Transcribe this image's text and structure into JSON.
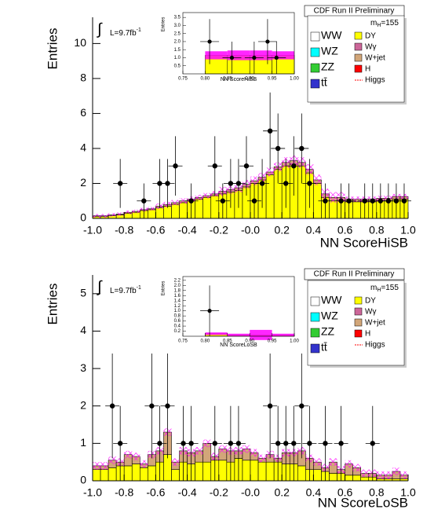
{
  "chart_data": [
    {
      "type": "histogram",
      "title": "CDF Run II Preliminary",
      "ylabel": "Entries",
      "xlabel": "NN ScoreHiSB",
      "annotations": {
        "integral": "∫",
        "lumi": "L=9.7fb",
        "lumi_sup": "-1",
        "mass": "m",
        "mass_sub": "H",
        "mass_rest": "=155"
      },
      "bins": [
        -1,
        -0.95,
        -0.9,
        -0.85,
        -0.8,
        -0.75,
        -0.7,
        -0.65,
        -0.6,
        -0.55,
        -0.5,
        -0.45,
        -0.4,
        -0.35,
        -0.3,
        -0.25,
        -0.2,
        -0.15,
        -0.1,
        -0.05,
        0,
        0.05,
        0.1,
        0.15,
        0.2,
        0.25,
        0.3,
        0.35,
        0.4,
        0.45,
        0.5,
        0.55,
        0.6,
        0.65,
        0.7,
        0.75,
        0.8,
        0.85,
        0.9,
        0.95,
        1
      ],
      "series": [
        {
          "name": "DY",
          "color": "#ffff00",
          "values": [
            0.1,
            0.1,
            0.15,
            0.2,
            0.3,
            0.35,
            0.45,
            0.5,
            0.6,
            0.7,
            0.8,
            0.9,
            1.0,
            1.1,
            1.2,
            1.3,
            1.4,
            1.5,
            1.6,
            1.8,
            2.0,
            2.2,
            2.5,
            2.8,
            3.0,
            3.1,
            3.0,
            2.6,
            2.0,
            1.2,
            1.0,
            1.0,
            0.95,
            0.95,
            0.95,
            0.95,
            1.0,
            1.0,
            1.1,
            1.1
          ]
        },
        {
          "name": "W+jet",
          "color": "#d2a679",
          "values": [
            0.05,
            0.05,
            0.05,
            0.05,
            0.05,
            0.05,
            0.05,
            0.05,
            0.1,
            0.1,
            0.1,
            0.1,
            0.1,
            0.1,
            0.1,
            0.1,
            0.15,
            0.15,
            0.15,
            0.15,
            0.15,
            0.15,
            0.15,
            0.15,
            0.2,
            0.2,
            0.2,
            0.2,
            0.2,
            0.2,
            0.2,
            0.2,
            0.15,
            0.15,
            0.15,
            0.15,
            0.15,
            0.15,
            0.15,
            0.15
          ]
        }
      ],
      "band": [
        0.1,
        0.1,
        0.1,
        0.1,
        0.1,
        0.1,
        0.1,
        0.1,
        0.15,
        0.15,
        0.15,
        0.15,
        0.15,
        0.15,
        0.15,
        0.15,
        0.25,
        0.25,
        0.25,
        0.25,
        0.25,
        0.25,
        0.25,
        0.25,
        0.3,
        0.3,
        0.3,
        0.3,
        0.3,
        0.3,
        0.3,
        0.3,
        0.15,
        0.15,
        0.15,
        0.15,
        0.15,
        0.15,
        0.15,
        0.15
      ],
      "band_color": "#ff00ff",
      "data": {
        "x": [
          -0.825,
          -0.675,
          -0.575,
          -0.525,
          -0.475,
          -0.375,
          -0.225,
          -0.175,
          -0.125,
          -0.075,
          -0.025,
          0.025,
          0.075,
          0.125,
          0.175,
          0.225,
          0.275,
          0.325,
          0.375,
          0.475,
          0.575,
          0.625,
          0.725,
          0.775,
          0.825,
          0.875,
          0.925,
          0.975
        ],
        "values": [
          2,
          1,
          2,
          2,
          3,
          1,
          3,
          1,
          2,
          2,
          3,
          1,
          2,
          5,
          4,
          2,
          3,
          4,
          2,
          1,
          1,
          1,
          1,
          1,
          1,
          1,
          1,
          1
        ],
        "errors": [
          1.4,
          1,
          1.4,
          1.4,
          1.7,
          1,
          1.7,
          1,
          1.4,
          1.4,
          1.7,
          1,
          1.4,
          2.2,
          2,
          1.4,
          1.7,
          2,
          1.4,
          1,
          1,
          1,
          1,
          1,
          1,
          1,
          1,
          1
        ]
      },
      "xlim": [
        -1,
        1
      ],
      "ylim": [
        0,
        11.5
      ],
      "xticks": [
        {
          "value": -1,
          "label": "-1.0"
        },
        -0.8,
        -0.6,
        -0.4,
        -0.2,
        {
          "value": 0,
          "label": "-0.0"
        },
        0.2,
        0.4,
        0.6,
        0.8,
        {
          "value": 1,
          "label": "1.0"
        }
      ],
      "yticks": [
        0,
        2,
        4,
        6,
        8,
        10
      ],
      "legend": [
        {
          "name": "WW",
          "color": "#ffffff"
        },
        {
          "name": "WZ",
          "color": "#00ffff"
        },
        {
          "name": "ZZ",
          "color": "#33cc33"
        },
        {
          "name": "tt̄",
          "color": "#3333cc"
        },
        {
          "name": "DY",
          "color": "#ffff00"
        },
        {
          "name": "Wγ",
          "color": "#cc6699"
        },
        {
          "name": "W+jet",
          "color": "#d2a679"
        },
        {
          "name": "H",
          "color": "#ff0000"
        },
        {
          "name": "Higgs",
          "color": "#ff0000",
          "line": true
        }
      ],
      "inset": {
        "xlabel": "NN ScoreHiSB",
        "ylabel": "Entries",
        "xlim": [
          0.75,
          1
        ],
        "ylim": [
          0,
          3.8
        ],
        "xticks": [
          0.75,
          {
            "value": 0.8,
            "label": "0.80"
          },
          0.85,
          {
            "value": 0.9,
            "label": "0.90"
          },
          0.95,
          {
            "value": 1,
            "label": "1.00"
          }
        ],
        "yticks": [
          0.5,
          {
            "value": 1,
            "label": "1.0"
          },
          1.5,
          {
            "value": 2,
            "label": "2.0"
          },
          2.5,
          {
            "value": 3,
            "label": "3.0"
          },
          3.5
        ],
        "bins": [
          0.75,
          0.8,
          0.85,
          0.9,
          0.95,
          1
        ],
        "values": [
          0,
          1.15,
          1.15,
          1.15,
          1.15
        ],
        "band": [
          0,
          0.25,
          0.3,
          0.3,
          0.25
        ],
        "data": {
          "x": [
            0.81,
            0.86,
            0.91,
            0.94,
            0.96
          ],
          "values": [
            2,
            1,
            1,
            2,
            1
          ],
          "errors": [
            1.4,
            1,
            1,
            1.4,
            1
          ]
        }
      }
    },
    {
      "type": "histogram",
      "title": "CDF Run II Preliminary",
      "ylabel": "Entries",
      "xlabel": "NN ScoreLoSB",
      "annotations": {
        "integral": "∫",
        "lumi": "L=9.7fb",
        "lumi_sup": "-1",
        "mass": "m",
        "mass_sub": "H",
        "mass_rest": "=155"
      },
      "bins": [
        -1,
        -0.95,
        -0.9,
        -0.85,
        -0.8,
        -0.75,
        -0.7,
        -0.65,
        -0.6,
        -0.55,
        -0.5,
        -0.45,
        -0.4,
        -0.35,
        -0.3,
        -0.25,
        -0.2,
        -0.15,
        -0.1,
        -0.05,
        0,
        0.05,
        0.1,
        0.15,
        0.2,
        0.25,
        0.3,
        0.35,
        0.4,
        0.45,
        0.5,
        0.55,
        0.6,
        0.65,
        0.7,
        0.75,
        0.8,
        0.85,
        0.9,
        0.95,
        1
      ],
      "series": [
        {
          "name": "DY",
          "color": "#ffff00",
          "values": [
            0.3,
            0.3,
            0.35,
            0.4,
            0.4,
            0.45,
            0.35,
            0.4,
            0.5,
            0.7,
            0.3,
            0.5,
            0.45,
            0.5,
            0.5,
            0.55,
            0.55,
            0.5,
            0.6,
            0.55,
            0.55,
            0.5,
            0.5,
            0.5,
            0.45,
            0.45,
            0.4,
            0.3,
            0.3,
            0.25,
            0.2,
            0.2,
            0.15,
            0.15,
            0.1,
            0.1,
            0.05,
            0.05,
            0.05,
            0.05
          ]
        },
        {
          "name": "W+jet",
          "color": "#d2a679",
          "values": [
            0.1,
            0.1,
            0.2,
            0.1,
            0.3,
            0.2,
            0.1,
            0.3,
            0.3,
            0.6,
            0.2,
            0.3,
            0.3,
            0.3,
            0.5,
            0.1,
            0.3,
            0.3,
            0.2,
            0.3,
            0.2,
            0.1,
            0.2,
            0.1,
            0.3,
            0.3,
            0.4,
            0.3,
            0.2,
            0.1,
            0.3,
            0.1,
            0.3,
            0.2,
            0.1,
            0.1,
            0.1,
            0.1,
            0.2,
            0.1
          ]
        }
      ],
      "band": [
        0.1,
        0.1,
        0.1,
        0.1,
        0.1,
        0.1,
        0.1,
        0.1,
        0.1,
        0.1,
        0.1,
        0.1,
        0.1,
        0.1,
        0.1,
        0.1,
        0.1,
        0.1,
        0.1,
        0.1,
        0.1,
        0.1,
        0.1,
        0.1,
        0.1,
        0.1,
        0.1,
        0.1,
        0.1,
        0.1,
        0.1,
        0.1,
        0.1,
        0.1,
        0.1,
        0.1,
        0.1,
        0.1,
        0.1,
        0.1
      ],
      "band_color": "#ff00ff",
      "data": {
        "x": [
          -0.875,
          -0.825,
          -0.625,
          -0.575,
          -0.525,
          -0.425,
          -0.375,
          -0.225,
          -0.125,
          -0.075,
          0.125,
          0.175,
          0.225,
          0.275,
          0.325,
          0.375,
          0.475,
          0.575,
          0.775
        ],
        "values": [
          2,
          1,
          2,
          1,
          2,
          1,
          1,
          1,
          1,
          1,
          2,
          1,
          1,
          1,
          2,
          1,
          1,
          1,
          1
        ],
        "errors": [
          1.4,
          1,
          1.4,
          1,
          1.4,
          1,
          1,
          1,
          1,
          1,
          1.4,
          1,
          1,
          1,
          1.4,
          1,
          1,
          1,
          1
        ]
      },
      "xlim": [
        -1,
        1
      ],
      "ylim": [
        0,
        5.5
      ],
      "xticks": [
        {
          "value": -1,
          "label": "-1.0"
        },
        -0.8,
        -0.6,
        -0.4,
        -0.2,
        {
          "value": 0,
          "label": "-0.0"
        },
        0.2,
        0.4,
        0.6,
        0.8,
        {
          "value": 1,
          "label": "1.0"
        }
      ],
      "yticks": [
        0,
        1,
        2,
        3,
        4,
        5
      ],
      "legend": [
        {
          "name": "WW",
          "color": "#ffffff"
        },
        {
          "name": "WZ",
          "color": "#00ffff"
        },
        {
          "name": "ZZ",
          "color": "#33cc33"
        },
        {
          "name": "tt̄",
          "color": "#3333cc"
        },
        {
          "name": "DY",
          "color": "#ffff00"
        },
        {
          "name": "Wγ",
          "color": "#cc6699"
        },
        {
          "name": "W+jet",
          "color": "#d2a679"
        },
        {
          "name": "H",
          "color": "#ff0000"
        },
        {
          "name": "Higgs",
          "color": "#ff0000",
          "line": true
        }
      ],
      "inset": {
        "xlabel": "NN ScoreLoSB",
        "ylabel": "Entries",
        "xlim": [
          0.75,
          1
        ],
        "ylim": [
          0,
          2.35
        ],
        "xticks": [
          0.75,
          {
            "value": 0.8,
            "label": "0.80"
          },
          0.85,
          {
            "value": 0.9,
            "label": "0.90"
          },
          0.95,
          {
            "value": 1,
            "label": "1.00"
          }
        ],
        "yticks": [
          0.2,
          0.4,
          0.6,
          0.8,
          {
            "value": 1,
            "label": "1.0"
          },
          1.2,
          1.4,
          1.6,
          1.8,
          {
            "value": 2,
            "label": "2.0"
          },
          2.2
        ],
        "bins": [
          0.75,
          0.8,
          0.85,
          0.9,
          0.95,
          1
        ],
        "values": [
          0,
          0.1,
          0.05,
          0.05,
          0.05
        ],
        "band": [
          0,
          0.05,
          0.05,
          0.2,
          0.05
        ],
        "data": {
          "x": [
            0.81
          ],
          "values": [
            1
          ],
          "errors": [
            1
          ]
        }
      }
    }
  ]
}
